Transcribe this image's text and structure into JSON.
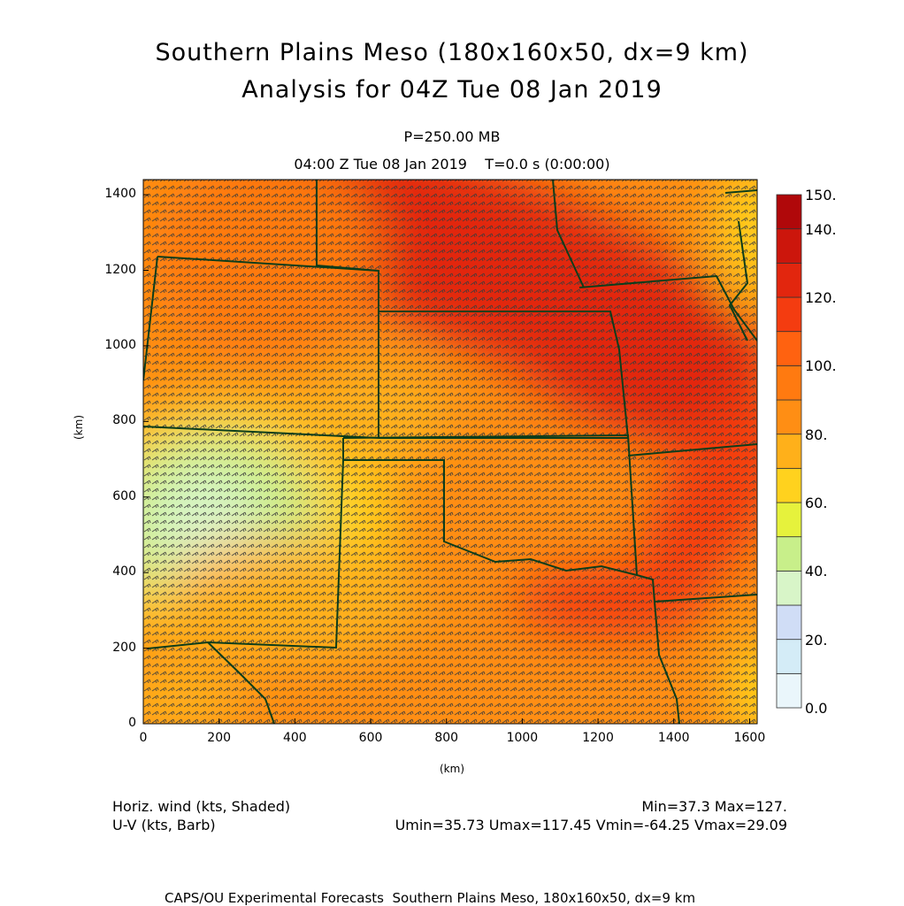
{
  "title": {
    "line1": "Southern Plains Meso (180x160x50, dx=9 km)",
    "line2": "Analysis for 04Z Tue 08 Jan 2019"
  },
  "level_label": "P=250.00 MB",
  "time_label": "04:00 Z Tue 08 Jan 2019    T=0.0 s (0:00:00)",
  "x_axis": {
    "label": "(km)",
    "ticks": [
      "0",
      "200",
      "400",
      "600",
      "800",
      "1000",
      "1200",
      "1400",
      "1600"
    ],
    "range": [
      0,
      1620
    ]
  },
  "y_axis": {
    "label": "(km)",
    "ticks": [
      "0",
      "200",
      "400",
      "600",
      "800",
      "1000",
      "1200",
      "1400"
    ],
    "range": [
      0,
      1440
    ]
  },
  "colorbar": {
    "labels": [
      "150.",
      "140.",
      "120.",
      "100.",
      "80.",
      "60.",
      "40.",
      "20.",
      "0.0"
    ],
    "levels": [
      0,
      10,
      20,
      30,
      40,
      50,
      60,
      70,
      80,
      90,
      100,
      110,
      120,
      130,
      140,
      150
    ],
    "colors": [
      "#eaf6fb",
      "#d4ecf7",
      "#d0ddf6",
      "#d8f5c8",
      "#c8ef8a",
      "#e6f23c",
      "#ffd21e",
      "#ffb01a",
      "#ff8e14",
      "#ff7a10",
      "#ff6210",
      "#f43c10",
      "#e2260e",
      "#cc160c",
      "#b0080a"
    ]
  },
  "legend": {
    "shaded": "Horiz. wind (kts, Shaded)",
    "barb": "U-V (kts, Barb)",
    "minmax": "Min=37.3 Max=127.",
    "uvstats": "Umin=35.73 Umax=117.45 Vmin=-64.25 Vmax=29.09"
  },
  "footer": "CAPS/OU Experimental Forecasts  Southern Plains Meso, 180x160x50, dx=9 km",
  "colors": {
    "borders": "#0d3d1a",
    "barbs": "#4a4a4a"
  }
}
